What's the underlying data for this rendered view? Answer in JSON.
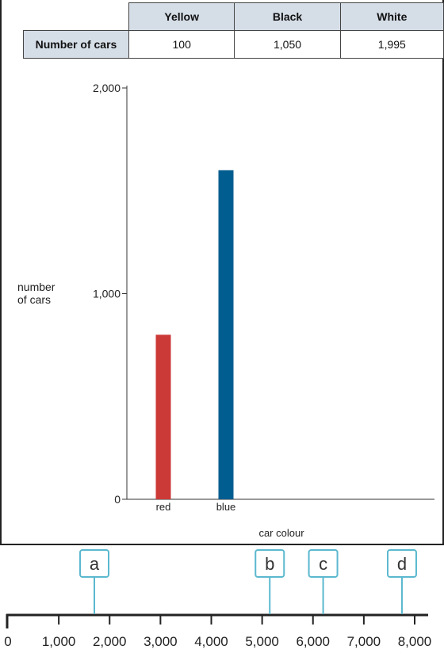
{
  "table": {
    "colors": [
      "Yellow",
      "Black",
      "White"
    ],
    "row_label": "Number of cars",
    "values": [
      "100",
      "1,050",
      "1,995"
    ]
  },
  "chart_data": [
    {
      "type": "bar",
      "categories": [
        "red",
        "blue"
      ],
      "values": [
        800,
        1600
      ],
      "bar_colors": [
        "#cc3a38",
        "#005d8f"
      ],
      "ylim": [
        0,
        2000
      ],
      "yticks": [
        0,
        1000,
        2000
      ],
      "ytick_labels": [
        "0",
        "1,000",
        "2,000"
      ],
      "ylabel_lines": [
        "number",
        "of cars"
      ],
      "xlabel": "car colour"
    },
    {
      "type": "number-line",
      "xlim": [
        0,
        8000
      ],
      "ticks": [
        0,
        1000,
        2000,
        3000,
        4000,
        5000,
        6000,
        7000,
        8000
      ],
      "tick_labels": [
        "0",
        "1,000",
        "2,000",
        "3,000",
        "4,000",
        "5,000",
        "6,000",
        "7,000",
        "8,000"
      ],
      "markers": [
        {
          "label": "a",
          "value": 1700
        },
        {
          "label": "b",
          "value": 5150
        },
        {
          "label": "c",
          "value": 6200
        },
        {
          "label": "d",
          "value": 7750
        }
      ],
      "marker_color": "#5bb8cf"
    }
  ]
}
